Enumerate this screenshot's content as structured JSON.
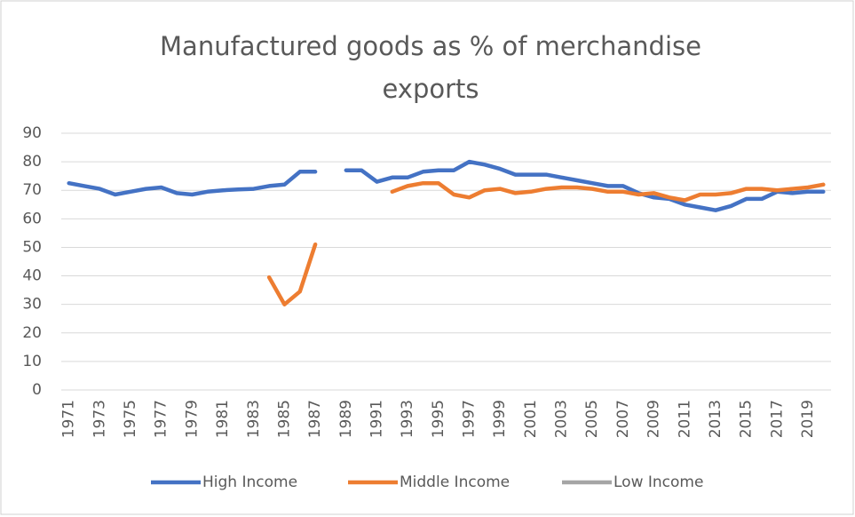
{
  "chart_data": {
    "type": "line",
    "title": "Manufactured goods as % of merchandise exports",
    "categories": [
      "1971",
      null,
      "1973",
      null,
      "1975",
      null,
      "1977",
      null,
      "1979",
      null,
      "1981",
      null,
      "1983",
      null,
      "1985",
      null,
      "1987",
      null,
      "1989",
      null,
      "1991",
      null,
      "1993",
      null,
      "1995",
      null,
      "1997",
      null,
      "1999",
      null,
      "2001",
      null,
      "2003",
      null,
      "2005",
      null,
      "2007",
      null,
      "2009",
      null,
      "2011",
      null,
      "2013",
      null,
      "2015",
      null,
      "2017",
      null,
      "2019",
      null
    ],
    "series": [
      {
        "name": "High Income",
        "color": "#4472c4",
        "values": [
          72.5,
          71.5,
          70.5,
          68.5,
          69.5,
          70.5,
          71,
          69,
          68.5,
          69.5,
          70,
          70.3,
          70.5,
          71.5,
          72,
          76.5,
          76.5,
          null,
          77,
          77,
          73,
          74.5,
          74.5,
          76.5,
          77,
          77,
          80,
          79,
          77.5,
          75.5,
          75.5,
          75.5,
          74.5,
          73.5,
          72.5,
          71.5,
          71.5,
          69,
          67.5,
          67,
          65,
          64,
          63,
          64.5,
          67,
          67,
          69.5,
          69,
          69.5,
          69.5
        ]
      },
      {
        "name": "Middle Income",
        "color": "#ed7d31",
        "values": [
          null,
          null,
          null,
          null,
          null,
          null,
          null,
          null,
          null,
          null,
          null,
          null,
          null,
          39.5,
          30,
          34.5,
          51,
          null,
          null,
          null,
          null,
          69.5,
          71.5,
          72.5,
          72.5,
          68.5,
          67.5,
          70,
          70.5,
          69,
          69.5,
          70.5,
          71,
          71,
          70.5,
          69.5,
          69.5,
          68.5,
          69,
          67.5,
          66.5,
          68.5,
          68.5,
          69,
          70.5,
          70.5,
          70,
          70.5,
          71,
          72
        ]
      },
      {
        "name": "Low Income",
        "color": "#a5a5a5",
        "values": [
          null,
          null,
          null,
          null,
          null,
          null,
          null,
          null,
          null,
          null,
          null,
          null,
          null,
          null,
          null,
          null,
          null,
          null,
          null,
          null,
          null,
          null,
          null,
          null,
          null,
          null,
          null,
          null,
          null,
          null,
          null,
          null,
          null,
          null,
          null,
          null,
          null,
          null,
          null,
          null,
          null,
          null,
          null,
          null,
          null,
          null,
          null,
          null,
          null,
          null
        ]
      }
    ],
    "ylim": [
      0,
      90
    ],
    "yticks": [
      0,
      10,
      20,
      30,
      40,
      50,
      60,
      70,
      80,
      90
    ],
    "grid": true,
    "legend": "bottom"
  }
}
